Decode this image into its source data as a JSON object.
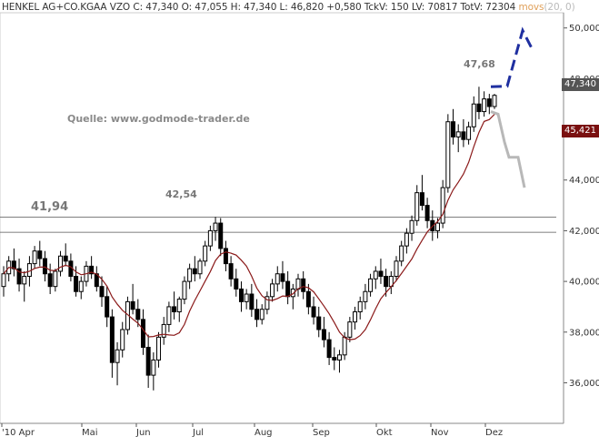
{
  "header": {
    "symbol": "HENKEL AG+CO.KGAA VZO",
    "quote_text": "C: 47,340  O: 47,055  H: 47,340  L: 46,820  +0,580  TckV: 150  LV: 70817  TotV: 72304",
    "indicator_label": "movs",
    "indicator_params": "(20, 0)"
  },
  "source_note": "Quelle: www.godmode-trader.de",
  "level_labels": {
    "left_level": "41,94",
    "mid_high": "42,54",
    "recent_high": "47,68"
  },
  "price_tags": {
    "last_price": "47,340",
    "moving_average": "45,421"
  },
  "colors": {
    "candles": "#000000",
    "moving_average": "#8b1a1a",
    "last_price_tag": "#555555",
    "ma_tag": "#7a1010",
    "bull_projection": "#1f2fa0",
    "bear_projection": "#b8b8b8",
    "support_lines": "#555555"
  },
  "chart_data": {
    "type": "candlestick",
    "title": "HENKEL AG+CO.KGAA VZO",
    "x_tick_labels": [
      "'10 Apr",
      "Mai",
      "Jun",
      "Jul",
      "Aug",
      "Sep",
      "Okt",
      "Nov",
      "Dez"
    ],
    "y_tick_labels": [
      "36,000",
      "38,000",
      "40,000",
      "42,000",
      "44,000",
      "46,000",
      "48,000",
      "50,000"
    ],
    "ylim": [
      34.4,
      50.6
    ],
    "horizontal_levels": [
      41.94,
      42.54
    ],
    "annotated_points": [
      {
        "label": "41,94",
        "value": 41.94
      },
      {
        "label": "42,54",
        "value": 42.54
      },
      {
        "label": "47,68",
        "value": 47.68
      }
    ],
    "last_close": 47.34,
    "moving_average_last": 45.421,
    "moving_average_params": "(20, 0)",
    "candles_approx": [
      [
        39.8,
        40.6,
        39.4,
        40.3
      ],
      [
        40.3,
        41.0,
        40.0,
        40.8
      ],
      [
        40.8,
        41.3,
        40.2,
        40.5
      ],
      [
        40.5,
        40.9,
        39.6,
        39.9
      ],
      [
        39.9,
        40.4,
        39.2,
        40.2
      ],
      [
        40.2,
        41.0,
        39.8,
        40.7
      ],
      [
        40.7,
        41.4,
        40.5,
        41.2
      ],
      [
        41.2,
        41.6,
        40.6,
        40.9
      ],
      [
        40.9,
        41.2,
        40.0,
        40.3
      ],
      [
        40.3,
        40.7,
        39.5,
        39.8
      ],
      [
        39.8,
        40.5,
        39.6,
        40.4
      ],
      [
        40.4,
        41.2,
        40.2,
        41.0
      ],
      [
        41.0,
        41.5,
        40.6,
        40.8
      ],
      [
        40.8,
        41.1,
        40.0,
        40.2
      ],
      [
        40.2,
        40.6,
        39.4,
        39.6
      ],
      [
        39.6,
        40.2,
        39.3,
        40.0
      ],
      [
        40.0,
        40.8,
        39.8,
        40.6
      ],
      [
        40.6,
        41.0,
        40.1,
        40.3
      ],
      [
        40.3,
        40.6,
        39.6,
        39.8
      ],
      [
        39.8,
        40.2,
        39.0,
        39.4
      ],
      [
        39.4,
        39.8,
        38.2,
        38.6
      ],
      [
        38.6,
        38.9,
        36.2,
        36.8
      ],
      [
        36.8,
        37.6,
        35.9,
        37.3
      ],
      [
        37.3,
        38.4,
        37.0,
        38.1
      ],
      [
        38.1,
        39.4,
        37.9,
        39.2
      ],
      [
        39.2,
        39.9,
        38.7,
        38.9
      ],
      [
        38.9,
        39.3,
        38.2,
        38.5
      ],
      [
        38.5,
        38.9,
        37.1,
        37.4
      ],
      [
        37.4,
        37.9,
        35.8,
        36.3
      ],
      [
        36.3,
        37.2,
        35.7,
        36.9
      ],
      [
        36.9,
        38.0,
        36.6,
        37.8
      ],
      [
        37.8,
        38.6,
        37.5,
        38.3
      ],
      [
        38.3,
        39.2,
        38.0,
        39.0
      ],
      [
        39.0,
        39.6,
        38.5,
        38.8
      ],
      [
        38.8,
        39.4,
        38.4,
        39.3
      ],
      [
        39.3,
        40.2,
        39.1,
        40.0
      ],
      [
        40.0,
        40.7,
        39.7,
        40.5
      ],
      [
        40.5,
        41.0,
        40.0,
        40.3
      ],
      [
        40.3,
        40.9,
        40.1,
        40.8
      ],
      [
        40.8,
        41.6,
        40.6,
        41.4
      ],
      [
        41.4,
        42.2,
        41.2,
        42.0
      ],
      [
        42.0,
        42.54,
        41.6,
        42.3
      ],
      [
        42.3,
        42.5,
        41.0,
        41.3
      ],
      [
        41.3,
        41.6,
        40.4,
        40.7
      ],
      [
        40.7,
        41.0,
        39.8,
        40.1
      ],
      [
        40.1,
        40.5,
        39.4,
        39.7
      ],
      [
        39.7,
        40.0,
        38.8,
        39.2
      ],
      [
        39.2,
        39.7,
        38.9,
        39.5
      ],
      [
        39.5,
        39.9,
        38.6,
        38.9
      ],
      [
        38.9,
        39.3,
        38.2,
        38.5
      ],
      [
        38.5,
        39.1,
        38.3,
        38.9
      ],
      [
        38.9,
        39.6,
        38.7,
        39.4
      ],
      [
        39.4,
        40.1,
        39.2,
        39.9
      ],
      [
        39.9,
        40.6,
        39.6,
        40.3
      ],
      [
        40.3,
        40.8,
        39.7,
        40.0
      ],
      [
        40.0,
        40.4,
        39.1,
        39.4
      ],
      [
        39.4,
        39.9,
        38.9,
        39.7
      ],
      [
        39.7,
        40.3,
        39.4,
        40.1
      ],
      [
        40.1,
        40.4,
        39.3,
        39.6
      ],
      [
        39.6,
        39.9,
        38.7,
        39.0
      ],
      [
        39.0,
        39.4,
        38.3,
        38.6
      ],
      [
        38.6,
        39.0,
        37.8,
        38.1
      ],
      [
        38.1,
        38.6,
        37.4,
        37.7
      ],
      [
        37.7,
        38.0,
        36.7,
        37.0
      ],
      [
        37.0,
        37.4,
        36.5,
        36.9
      ],
      [
        36.9,
        37.3,
        36.4,
        37.1
      ],
      [
        37.1,
        38.0,
        36.9,
        37.8
      ],
      [
        37.8,
        38.6,
        37.6,
        38.4
      ],
      [
        38.4,
        39.0,
        38.1,
        38.8
      ],
      [
        38.8,
        39.4,
        38.5,
        39.2
      ],
      [
        39.2,
        39.9,
        38.9,
        39.6
      ],
      [
        39.6,
        40.3,
        39.4,
        40.1
      ],
      [
        40.1,
        40.6,
        39.7,
        40.4
      ],
      [
        40.4,
        40.9,
        39.9,
        40.2
      ],
      [
        40.2,
        40.5,
        39.4,
        39.8
      ],
      [
        39.8,
        40.4,
        39.5,
        40.2
      ],
      [
        40.2,
        41.0,
        40.0,
        40.8
      ],
      [
        40.8,
        41.6,
        40.6,
        41.4
      ],
      [
        41.4,
        42.1,
        41.1,
        41.9
      ],
      [
        41.9,
        42.6,
        41.6,
        42.4
      ],
      [
        42.4,
        43.8,
        42.2,
        43.5
      ],
      [
        43.5,
        44.2,
        42.8,
        43.0
      ],
      [
        43.0,
        43.3,
        42.1,
        42.4
      ],
      [
        42.4,
        42.8,
        41.6,
        42.0
      ],
      [
        42.0,
        42.5,
        41.7,
        42.3
      ],
      [
        42.3,
        44.0,
        42.1,
        43.7
      ],
      [
        43.7,
        46.6,
        43.5,
        46.3
      ],
      [
        46.3,
        46.8,
        45.4,
        45.7
      ],
      [
        45.7,
        46.2,
        45.1,
        45.9
      ],
      [
        45.9,
        46.4,
        45.3,
        45.6
      ],
      [
        45.6,
        46.3,
        45.4,
        46.1
      ],
      [
        46.1,
        47.3,
        45.9,
        47.0
      ],
      [
        47.0,
        47.68,
        46.4,
        46.7
      ],
      [
        46.7,
        47.5,
        46.5,
        47.2
      ],
      [
        47.2,
        47.4,
        46.6,
        46.9
      ],
      [
        46.9,
        47.4,
        46.8,
        47.34
      ]
    ],
    "projections": [
      {
        "name": "bullish",
        "style": "dashed",
        "points": [
          [
            47.68
          ],
          [
            47.7
          ],
          [
            49.9
          ],
          [
            49.2
          ]
        ]
      },
      {
        "name": "bearish",
        "style": "solid",
        "points": [
          [
            46.7
          ],
          [
            46.6
          ],
          [
            45.5
          ],
          [
            44.9
          ],
          [
            44.9
          ],
          [
            43.7
          ]
        ]
      }
    ]
  }
}
